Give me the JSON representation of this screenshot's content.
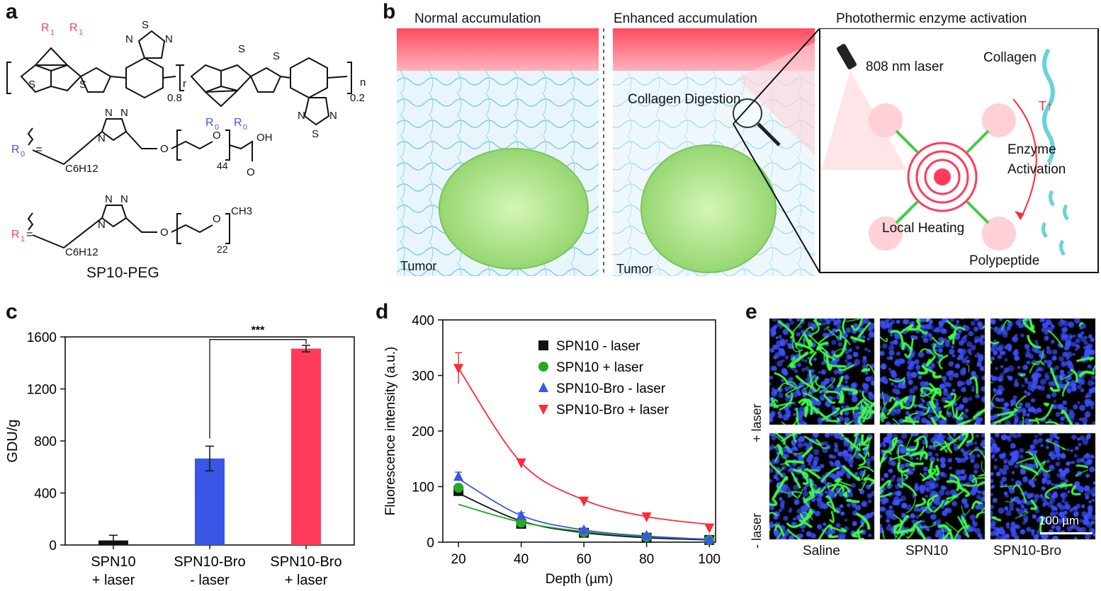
{
  "panels": {
    "a": {
      "label": "a",
      "subscripts": {
        "r": "r",
        "x08": "0.8",
        "x02": "0.2",
        "n": "n"
      },
      "substituents": {
        "R0_label": "R0 =",
        "R1_label": "R1 =",
        "R0_chain": "44",
        "R1_chain": "22",
        "hexyl": "C6H12",
        "acid": "OH",
        "methyl": "CH3"
      },
      "compound_name": "SP10-PEG"
    },
    "b": {
      "label": "b",
      "scene1_title": "Normal accumulation",
      "scene2_title": "Enhanced accumulation",
      "scene3_title": "Photothermic enzyme activation",
      "tumor_label": "Tumor",
      "digestion_label": "Collagen Digestion",
      "laser_label": "808 nm laser",
      "collagen_label": "Collagen",
      "enzyme_label_1": "Enzyme",
      "enzyme_label_2": "Activation",
      "heating_label": "Local Heating",
      "polypeptide_label": "Polypeptide",
      "temp_label": "T↑"
    },
    "c": {
      "label": "c",
      "significance": "***"
    },
    "d": {
      "label": "d"
    },
    "e": {
      "label": "e",
      "row_labels": [
        "+ laser",
        "- laser"
      ],
      "col_labels": [
        "Saline",
        "SPN10",
        "SPN10-Bro"
      ],
      "scale_bar": "100 µm",
      "intensity": [
        [
          0.9,
          0.65,
          0.35
        ],
        [
          0.85,
          0.85,
          0.2
        ]
      ]
    }
  },
  "chart_data": [
    {
      "type": "bar",
      "panel": "c",
      "categories": [
        "SPN10\n+ laser",
        "SPN10-Bro\n- laser",
        "SPN10-Bro\n+ laser"
      ],
      "values": [
        35,
        665,
        1510
      ],
      "errors": [
        40,
        95,
        25
      ],
      "colors": [
        "#111111",
        "#3a56e6",
        "#ff3b5c"
      ],
      "ylabel": "GDU/g",
      "ylim": [
        0,
        1600
      ],
      "yticks": [
        0,
        400,
        800,
        1200,
        1600
      ]
    },
    {
      "type": "scatter",
      "panel": "d",
      "xlabel": "Depth (µm)",
      "ylabel": "Fluorescence intensity (a.u.)",
      "xlim": [
        15,
        102
      ],
      "ylim": [
        0,
        400
      ],
      "xticks": [
        20,
        40,
        60,
        80,
        100
      ],
      "yticks": [
        0,
        100,
        200,
        300,
        400
      ],
      "legend": "top-right",
      "series": [
        {
          "name": "SPN10 - laser",
          "marker": "square",
          "color": "#111111",
          "x": [
            20,
            40,
            60,
            80,
            100
          ],
          "y": [
            92,
            33,
            17,
            8,
            4
          ],
          "err": [
            8,
            4,
            3,
            2,
            1
          ],
          "fit": [
            88,
            38,
            17,
            8,
            4
          ]
        },
        {
          "name": "SPN10 + laser",
          "marker": "circle",
          "color": "#22aa22",
          "x": [
            20,
            40,
            60,
            80,
            100
          ],
          "y": [
            98,
            35,
            18,
            9,
            4
          ],
          "err": [
            6,
            4,
            3,
            2,
            1
          ],
          "fit": [
            68,
            36,
            19,
            10,
            5
          ]
        },
        {
          "name": "SPN10-Bro - laser",
          "marker": "triangle-up",
          "color": "#3a56e6",
          "x": [
            20,
            40,
            60,
            80,
            100
          ],
          "y": [
            118,
            48,
            22,
            12,
            5
          ],
          "err": [
            8,
            5,
            3,
            2,
            1
          ],
          "fit": [
            114,
            48,
            22,
            11,
            5
          ]
        },
        {
          "name": "SPN10-Bro + laser",
          "marker": "triangle-down",
          "color": "#ff2a3a",
          "x": [
            20,
            40,
            60,
            80,
            100
          ],
          "y": [
            313,
            143,
            74,
            46,
            26
          ],
          "err": [
            28,
            6,
            7,
            5,
            5
          ],
          "fit": [
            313,
            143,
            76,
            46,
            32
          ]
        }
      ]
    }
  ]
}
